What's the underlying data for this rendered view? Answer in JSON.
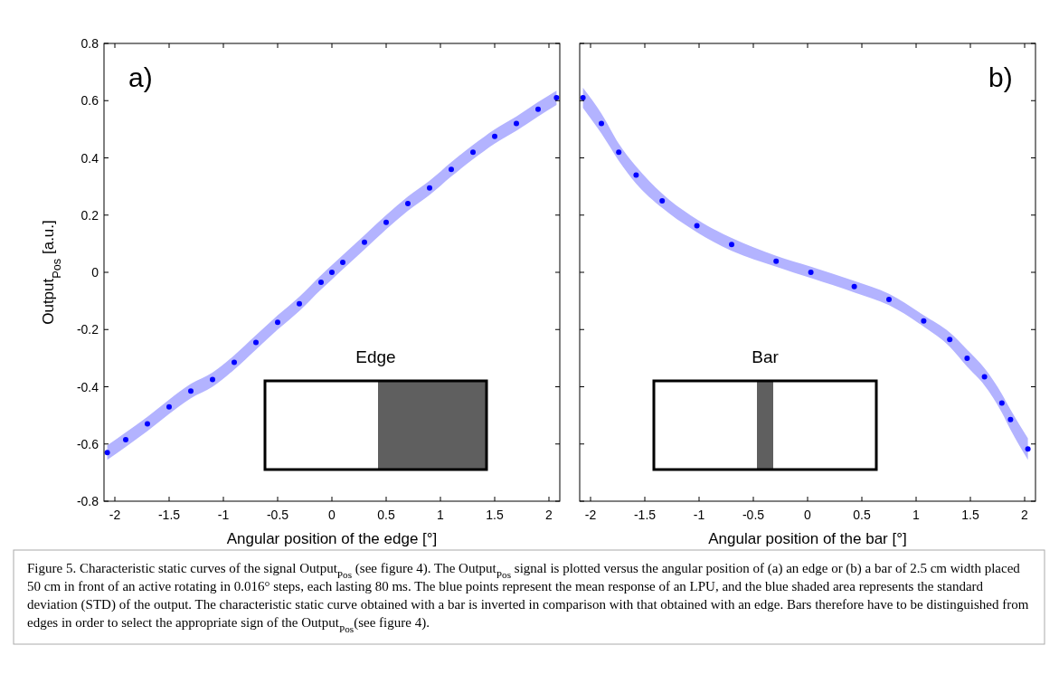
{
  "chart_data": [
    {
      "type": "scatter",
      "xlabel": "Angular position of the edge [°]",
      "ylabel": "Output$_{Pos}$ [a.u.]",
      "xlim": [
        -2.1,
        2.1
      ],
      "ylim": [
        -0.8,
        0.8
      ],
      "xticks": [
        -2,
        -1.5,
        -1,
        -0.5,
        0,
        0.5,
        1,
        1.5,
        2
      ],
      "yticks": [
        -0.8,
        -0.6,
        -0.4,
        -0.2,
        0,
        0.2,
        0.4,
        0.6,
        0.8
      ],
      "marker": "circle",
      "grid": false,
      "series": [
        {
          "color": "#0000ff",
          "x": [
            -2.07,
            -1.9,
            -1.7,
            -1.5,
            -1.3,
            -1.1,
            -0.9,
            -0.7,
            -0.5,
            -0.3,
            -0.1,
            0,
            0.1,
            0.3,
            0.5,
            0.7,
            0.9,
            1.1,
            1.3,
            1.5,
            1.7,
            1.9,
            2.07
          ],
          "values": [
            -0.63,
            -0.585,
            -0.53,
            -0.47,
            -0.415,
            -0.375,
            -0.315,
            -0.245,
            -0.175,
            -0.11,
            -0.035,
            0,
            0.035,
            0.105,
            0.175,
            0.24,
            0.295,
            0.36,
            0.42,
            0.475,
            0.52,
            0.57,
            0.61
          ],
          "lower": [
            -0.655,
            -0.61,
            -0.555,
            -0.495,
            -0.44,
            -0.4,
            -0.34,
            -0.27,
            -0.2,
            -0.135,
            -0.06,
            -0.025,
            0.01,
            0.08,
            0.15,
            0.215,
            0.27,
            0.335,
            0.395,
            0.45,
            0.495,
            0.545,
            0.585
          ],
          "upper": [
            -0.605,
            -0.56,
            -0.505,
            -0.445,
            -0.39,
            -0.35,
            -0.29,
            -0.22,
            -0.15,
            -0.085,
            -0.01,
            0.025,
            0.06,
            0.13,
            0.2,
            0.265,
            0.32,
            0.385,
            0.445,
            0.5,
            0.545,
            0.595,
            0.635
          ]
        }
      ],
      "annotations": [
        "a)",
        "Edge",
        "Figure 5. Characteristic static curves of the signal Output$_{Pos}$ (see figure 4). The Output$_{Pos}$ signal is plotted versus the angular position of (a) an edge or (b) a bar of 2.5 cm width placed 50 cm in front of an active rotating in 0.016° steps, each lasting 80 ms. The blue points represent the mean response of an LPU, and the blue shaded area represents the standard deviation (STD) of the output. The characteristic static curve obtained with a bar is inverted in comparison with that obtained with an edge. Bars therefore have to be distinguished from edges in order to select the appropriate sign of the Output$_{Pos}$(see figure 4)."
      ]
    },
    {
      "type": "scatter",
      "xlabel": "Angular position of the bar [°]",
      "xlim": [
        -2.1,
        2.1
      ],
      "ylim": [
        -0.8,
        0.8
      ],
      "xticks": [
        -2,
        -1.5,
        -1,
        -0.5,
        0,
        0.5,
        1,
        1.5,
        2
      ],
      "yticks": [
        -0.8,
        -0.6,
        -0.4,
        -0.2,
        0,
        0.2,
        0.4,
        0.6,
        0.8
      ],
      "tick_labels": "x",
      "marker": "circle",
      "grid": false,
      "series": [
        {
          "color": "#0000ff",
          "x": [
            -2.07,
            -1.9,
            -1.74,
            -1.58,
            -1.34,
            -1.02,
            -0.7,
            -0.29,
            0.03,
            0.43,
            0.75,
            1.07,
            1.31,
            1.47,
            1.63,
            1.79,
            1.87,
            2.03
          ],
          "values": [
            0.61,
            0.52,
            0.42,
            0.34,
            0.25,
            0.163,
            0.097,
            0.039,
            0,
            -0.05,
            -0.095,
            -0.17,
            -0.235,
            -0.3,
            -0.365,
            -0.457,
            -0.515,
            -0.617
          ],
          "lower": [
            0.575,
            0.485,
            0.39,
            0.31,
            0.225,
            0.14,
            0.075,
            0.02,
            -0.02,
            -0.07,
            -0.115,
            -0.19,
            -0.26,
            -0.33,
            -0.395,
            -0.49,
            -0.55,
            -0.655
          ],
          "upper": [
            0.645,
            0.555,
            0.45,
            0.37,
            0.275,
            0.185,
            0.12,
            0.058,
            0.02,
            -0.03,
            -0.075,
            -0.15,
            -0.21,
            -0.27,
            -0.335,
            -0.425,
            -0.48,
            -0.58
          ]
        }
      ],
      "annotations": [
        "b)",
        "Bar"
      ]
    }
  ]
}
